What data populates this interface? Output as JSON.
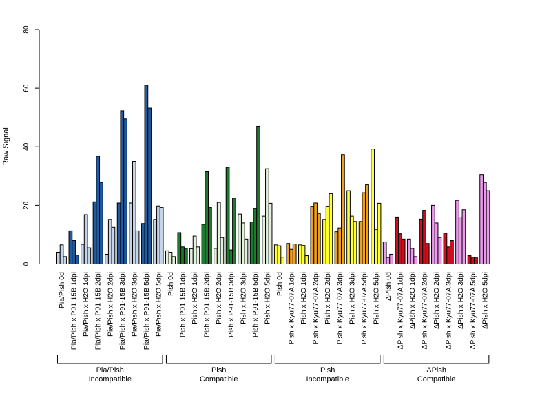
{
  "chart_data": {
    "type": "bar",
    "title": "",
    "ylabel": "Raw Signal",
    "xlabel": "",
    "ylim": [
      0,
      80
    ],
    "yticks": [
      0,
      20,
      40,
      60,
      80
    ],
    "grid": false,
    "bars_per_category": 3,
    "categories": [
      {
        "label": "Pia/Pish 0d",
        "group": 0,
        "color": "#c6d4ea",
        "values": [
          4,
          6.5,
          2.5
        ]
      },
      {
        "label": "Pia/Pish x P91-15B 1dpi",
        "group": 0,
        "color": "#1f5aa3",
        "values": [
          11.3,
          8,
          3
        ]
      },
      {
        "label": "Pia/Pish x H2O 1dpi",
        "group": 0,
        "color": "#c6d4ea",
        "values": [
          6.7,
          16.8,
          5.5
        ]
      },
      {
        "label": "Pia/Pish x P91-15B 2dpi",
        "group": 0,
        "color": "#1f5aa3",
        "values": [
          21.2,
          36.8,
          27.8
        ]
      },
      {
        "label": "Pia/Pish x H2O 2dpi",
        "group": 0,
        "color": "#c6d4ea",
        "values": [
          3.3,
          15.2,
          12.5
        ]
      },
      {
        "label": "Pia/Pish x P91-15B 3dpi",
        "group": 0,
        "color": "#1f5aa3",
        "values": [
          20.8,
          52.3,
          49.5
        ]
      },
      {
        "label": "Pia/Pish x H2O 3dpi",
        "group": 0,
        "color": "#c6d4ea",
        "values": [
          20.8,
          35,
          11.3
        ]
      },
      {
        "label": "Pia/Pish x P91-15B 5dpi",
        "group": 0,
        "color": "#1f5aa3",
        "values": [
          13.8,
          61,
          53.2
        ]
      },
      {
        "label": "Pia/Pish x H2O 5dpi",
        "group": 0,
        "color": "#c6d4ea",
        "values": [
          15.2,
          19.8,
          19.3
        ]
      },
      {
        "label": "Pish 0d",
        "group": 1,
        "color": "#e3f0dc",
        "values": [
          4.5,
          4,
          2.5
        ]
      },
      {
        "label": "Pish x P91-15B 1dpi",
        "group": 1,
        "color": "#1e7a2e",
        "values": [
          10.7,
          5.8,
          5.3
        ]
      },
      {
        "label": "Pish x H2O 1dpi",
        "group": 1,
        "color": "#e3f0dc",
        "values": [
          5.2,
          9.5,
          5.8
        ]
      },
      {
        "label": "Pish x P91-15B 2dpi",
        "group": 1,
        "color": "#1e7a2e",
        "values": [
          13.5,
          31.5,
          19.3
        ]
      },
      {
        "label": "Pish x H2O 2dpi",
        "group": 1,
        "color": "#e3f0dc",
        "values": [
          5.3,
          21,
          9
        ]
      },
      {
        "label": "Pish x P91-15B 3dpi",
        "group": 1,
        "color": "#1e7a2e",
        "values": [
          33,
          4.8,
          22.5
        ]
      },
      {
        "label": "Pish x H2O 3dpi",
        "group": 1,
        "color": "#e3f0dc",
        "values": [
          17,
          14,
          8.5
        ]
      },
      {
        "label": "Pish x P91-15B 5dpi",
        "group": 1,
        "color": "#1e7a2e",
        "values": [
          14.3,
          19,
          47
        ]
      },
      {
        "label": "Pish x H2O 5dpi",
        "group": 1,
        "color": "#e3f0dc",
        "values": [
          16.3,
          32.5,
          20.7
        ]
      },
      {
        "label": "Pish 0d",
        "group": 2,
        "color": "#ffff33",
        "values": [
          6.5,
          6.2,
          2.3
        ]
      },
      {
        "label": "Pish x Kyu77-07A 1dpi",
        "group": 2,
        "color": "#f0a020",
        "values": [
          7,
          5,
          6.8
        ]
      },
      {
        "label": "Pish x H2O 1dpi",
        "group": 2,
        "color": "#ffff33",
        "values": [
          6.5,
          6.3,
          2.8
        ]
      },
      {
        "label": "Pish x Kyu77-07A 2dpi",
        "group": 2,
        "color": "#f0a020",
        "values": [
          19.7,
          20.8,
          17.2
        ]
      },
      {
        "label": "Pish x H2O 2dpi",
        "group": 2,
        "color": "#ffff33",
        "values": [
          15.2,
          19.7,
          24
        ]
      },
      {
        "label": "Pish x Kyu77-07A 3dpi",
        "group": 2,
        "color": "#f0a020",
        "values": [
          11,
          12.3,
          37.3
        ]
      },
      {
        "label": "Pish x H2O 3dpi",
        "group": 2,
        "color": "#ffff33",
        "values": [
          25,
          16.3,
          14.5
        ]
      },
      {
        "label": "Pish x Kyu77-07A 5dpi",
        "group": 2,
        "color": "#f0a020",
        "values": [
          14.5,
          24.3,
          27
        ]
      },
      {
        "label": "Pish x H2O 5dpi",
        "group": 2,
        "color": "#ffff33",
        "values": [
          39.2,
          11.8,
          20.7
        ]
      },
      {
        "label": "ΔPish 0d",
        "group": 3,
        "color": "#ee99ee",
        "values": [
          7.5,
          2.2,
          3.3
        ]
      },
      {
        "label": "ΔPish x Kyu77-07A 1dpi",
        "group": 3,
        "color": "#cc0e1f",
        "values": [
          16,
          10.3,
          8.5
        ]
      },
      {
        "label": "ΔPish x H2O 1dpi",
        "group": 3,
        "color": "#ee99ee",
        "values": [
          8.5,
          5.3,
          2.5
        ]
      },
      {
        "label": "ΔPish x Kyu77-07A 2dpi",
        "group": 3,
        "color": "#cc0e1f",
        "values": [
          15.3,
          18.3,
          7
        ]
      },
      {
        "label": "ΔPish x H2O 2dpi",
        "group": 3,
        "color": "#ee99ee",
        "values": [
          20,
          14,
          9
        ]
      },
      {
        "label": "ΔPish x Kyu77-07A 3dpi",
        "group": 3,
        "color": "#cc0e1f",
        "values": [
          10.5,
          5.8,
          8
        ]
      },
      {
        "label": "ΔPish x H2O 3dpi",
        "group": 3,
        "color": "#ee99ee",
        "values": [
          21.7,
          15.8,
          18.5
        ]
      },
      {
        "label": "ΔPish x Kyu77-07A 5dpi",
        "group": 3,
        "color": "#cc0e1f",
        "values": [
          2.8,
          2.3,
          2.3
        ]
      },
      {
        "label": "ΔPish x H2O 5dpi",
        "group": 3,
        "color": "#ee99ee",
        "values": [
          30.5,
          27.8,
          25
        ]
      }
    ],
    "groups": [
      {
        "line1": "Pia/Pish",
        "line2": "Incompatible"
      },
      {
        "line1": "Pish",
        "line2": "Compatible"
      },
      {
        "line1": "Pish",
        "line2": "Incompatible"
      },
      {
        "line1": "ΔPish",
        "line2": "Compatible"
      }
    ]
  }
}
